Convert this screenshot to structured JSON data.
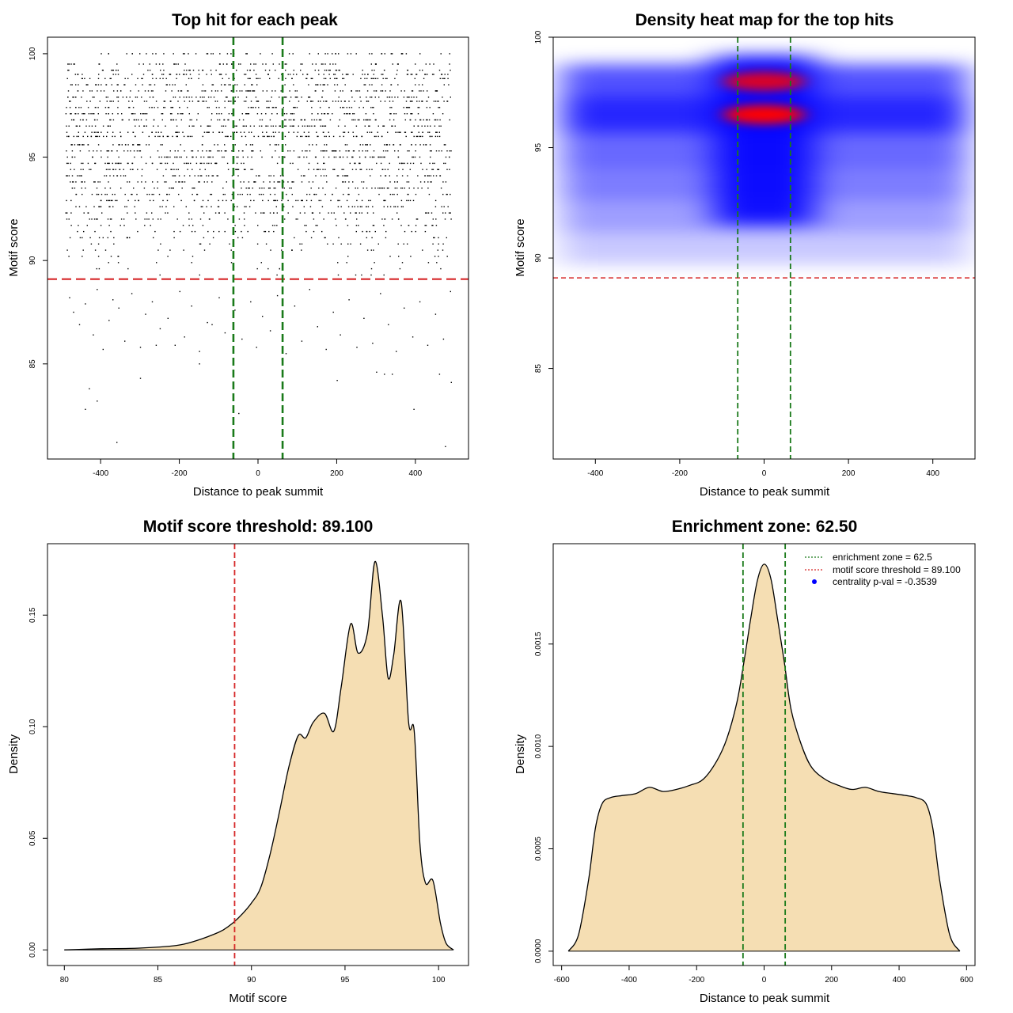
{
  "chart_data": [
    {
      "type": "scatter",
      "title": "Top hit for each peak",
      "xlabel": "Distance to peak summit",
      "ylabel": "Motif score",
      "xlim": [
        -535,
        535
      ],
      "ylim": [
        80.4,
        100.8
      ],
      "xticks": [
        -400,
        -200,
        0,
        200,
        400
      ],
      "yticks": [
        85,
        90,
        95,
        100
      ],
      "hline": {
        "y": 89.1,
        "color": "#d62728"
      },
      "vlines": {
        "x": [
          -62.5,
          62.5
        ],
        "color": "#1a7a1a"
      },
      "point_generation": {
        "x_range": [
          -490,
          490
        ],
        "score_levels": [
          100.0,
          99.5,
          99.2,
          99.0,
          98.8,
          98.5,
          98.2,
          97.9,
          97.7,
          97.4,
          97.1,
          96.8,
          96.5,
          96.2,
          96.0,
          95.6,
          95.3,
          95.0,
          94.7,
          94.4,
          94.1,
          93.8,
          93.5,
          93.2,
          92.9,
          92.6,
          92.3,
          92.0,
          91.7,
          91.4,
          91.1,
          90.8,
          90.5,
          90.2,
          89.9,
          89.6,
          89.3
        ],
        "dense_count_per_level": [
          55,
          60,
          60,
          80,
          70,
          70,
          90,
          85,
          90,
          85,
          95,
          95,
          100,
          90,
          95,
          85,
          95,
          90,
          85,
          80,
          80,
          75,
          70,
          70,
          65,
          60,
          55,
          50,
          40,
          35,
          30,
          25,
          20,
          15,
          12,
          10,
          8
        ],
        "sparse_points": [
          [
            -480,
            88.2
          ],
          [
            -470,
            87.5
          ],
          [
            -455,
            86.9
          ],
          [
            -440,
            87.9
          ],
          [
            -420,
            86.4
          ],
          [
            -410,
            88.6
          ],
          [
            -395,
            85.7
          ],
          [
            -380,
            87.1
          ],
          [
            -370,
            88.1
          ],
          [
            -355,
            87.7
          ],
          [
            -340,
            86.1
          ],
          [
            -322,
            88.4
          ],
          [
            -300,
            85.8
          ],
          [
            -287,
            87.4
          ],
          [
            -270,
            88.0
          ],
          [
            -250,
            86.7
          ],
          [
            -230,
            87.2
          ],
          [
            -212,
            85.9
          ],
          [
            -200,
            88.5
          ],
          [
            -188,
            86.3
          ],
          [
            -170,
            87.8
          ],
          [
            -150,
            85.6
          ],
          [
            -130,
            87.0
          ],
          [
            -118,
            86.9
          ],
          [
            -100,
            88.2
          ],
          [
            -85,
            86.5
          ],
          [
            -60,
            87.6
          ],
          [
            -42,
            86.2
          ],
          [
            -20,
            88.0
          ],
          [
            -5,
            85.8
          ],
          [
            10,
            87.3
          ],
          [
            30,
            86.6
          ],
          [
            48,
            88.3
          ],
          [
            70,
            85.5
          ],
          [
            92,
            87.8
          ],
          [
            110,
            86.1
          ],
          [
            130,
            88.6
          ],
          [
            150,
            86.8
          ],
          [
            172,
            85.7
          ],
          [
            190,
            87.5
          ],
          [
            208,
            86.4
          ],
          [
            230,
            88.1
          ],
          [
            250,
            85.8
          ],
          [
            268,
            87.2
          ],
          [
            290,
            86.0
          ],
          [
            310,
            88.4
          ],
          [
            330,
            86.9
          ],
          [
            350,
            85.6
          ],
          [
            370,
            87.7
          ],
          [
            392,
            86.3
          ],
          [
            410,
            88.0
          ],
          [
            430,
            85.9
          ],
          [
            450,
            87.4
          ],
          [
            470,
            86.2
          ],
          [
            488,
            88.5
          ],
          [
            -430,
            83.8
          ],
          [
            -410,
            83.2
          ],
          [
            -440,
            82.8
          ],
          [
            -360,
            81.2
          ],
          [
            -300,
            84.3
          ],
          [
            -150,
            85.0
          ],
          [
            -50,
            82.6
          ],
          [
            200,
            84.2
          ],
          [
            300,
            84.6
          ],
          [
            320,
            84.5
          ],
          [
            340,
            84.5
          ],
          [
            395,
            82.8
          ],
          [
            460,
            84.5
          ],
          [
            475,
            81.0
          ],
          [
            490,
            84.1
          ],
          [
            -260,
            85.9
          ],
          [
            60,
            85.2
          ]
        ]
      },
      "marker_color": "#000000"
    },
    {
      "type": "heatmap",
      "title": "Density heat map for the top hits",
      "xlabel": "Distance to peak summit",
      "ylabel": "Motif score",
      "xlim": [
        -500,
        500
      ],
      "ylim": [
        80.9,
        100.0
      ],
      "xticks": [
        -400,
        -200,
        0,
        200,
        400
      ],
      "yticks": [
        85,
        90,
        95,
        100
      ],
      "hline": {
        "y": 89.1,
        "color": "#d62728"
      },
      "vlines": {
        "x": [
          -62.5,
          62.5
        ],
        "color": "#1a7a1a"
      },
      "colors": {
        "low": "#ffffff",
        "mid": "#0000ff",
        "high": "#ff0000"
      },
      "density_bands": [
        {
          "y": 98.0,
          "weight": 0.8
        },
        {
          "y": 96.5,
          "weight": 1.0
        },
        {
          "y": 95.0,
          "weight": 0.7
        },
        {
          "y": 93.5,
          "weight": 0.6
        },
        {
          "y": 92.0,
          "weight": 0.45
        },
        {
          "y": 90.5,
          "weight": 0.25
        }
      ],
      "hotspots": [
        {
          "x": 0,
          "y": 96.5,
          "weight": 1.0
        },
        {
          "x": 0,
          "y": 98.0,
          "weight": 0.85
        }
      ]
    },
    {
      "type": "area",
      "title": "Motif score threshold: 89.100",
      "xlabel": "Motif score",
      "ylabel": "Density",
      "xlim": [
        79.1,
        101.6
      ],
      "ylim": [
        -0.007,
        0.182
      ],
      "xticks": [
        80,
        85,
        90,
        95,
        100
      ],
      "yticks": [
        0.0,
        0.05,
        0.1,
        0.15
      ],
      "ytick_labels": [
        "0.00",
        "0.05",
        "0.10",
        "0.15"
      ],
      "vline": {
        "x": 89.1,
        "color": "#d62728"
      },
      "fill": "#f5deb3",
      "x": [
        80.0,
        82.0,
        84.0,
        86.0,
        87.0,
        88.0,
        88.5,
        89.0,
        89.5,
        90.0,
        90.5,
        91.0,
        91.5,
        92.0,
        92.5,
        92.9,
        93.3,
        93.9,
        94.4,
        94.8,
        95.3,
        95.7,
        96.2,
        96.6,
        97.0,
        97.3,
        97.6,
        98.0,
        98.4,
        98.7,
        99.0,
        99.3,
        99.7,
        100.1,
        100.4,
        100.8
      ],
      "y": [
        0.0,
        0.0005,
        0.0008,
        0.002,
        0.004,
        0.007,
        0.009,
        0.012,
        0.016,
        0.021,
        0.028,
        0.043,
        0.062,
        0.082,
        0.096,
        0.095,
        0.102,
        0.106,
        0.098,
        0.118,
        0.146,
        0.133,
        0.142,
        0.174,
        0.15,
        0.122,
        0.132,
        0.156,
        0.102,
        0.098,
        0.048,
        0.03,
        0.031,
        0.012,
        0.003,
        0.0
      ]
    },
    {
      "type": "area",
      "title": "Enrichment zone: 62.50",
      "xlabel": "Distance to peak summit",
      "ylabel": "Density",
      "xlim": [
        -625,
        625
      ],
      "ylim": [
        -7e-05,
        0.00199
      ],
      "xticks": [
        -600,
        -400,
        -200,
        0,
        200,
        400,
        600
      ],
      "yticks": [
        0.0,
        0.0005,
        0.001,
        0.0015
      ],
      "ytick_labels": [
        "0.0000",
        "0.0005",
        "0.0010",
        "0.0015"
      ],
      "vlines": {
        "x": [
          -62.5,
          62.5
        ],
        "color": "#1a7a1a"
      },
      "fill": "#f5deb3",
      "x": [
        -580,
        -550,
        -520,
        -500,
        -480,
        -455,
        -420,
        -380,
        -340,
        -300,
        -260,
        -220,
        -180,
        -140,
        -110,
        -80,
        -60,
        -40,
        -20,
        0,
        20,
        40,
        60,
        80,
        110,
        140,
        180,
        220,
        260,
        300,
        340,
        380,
        420,
        450,
        480,
        500,
        520,
        550,
        580
      ],
      "y": [
        0.0,
        8e-05,
        0.00035,
        0.0006,
        0.00072,
        0.00075,
        0.00076,
        0.00077,
        0.0008,
        0.00078,
        0.00079,
        0.00081,
        0.00084,
        0.00093,
        0.00104,
        0.00122,
        0.00141,
        0.00162,
        0.00181,
        0.00189,
        0.00182,
        0.00162,
        0.00141,
        0.00118,
        0.00101,
        0.0009,
        0.00084,
        0.00081,
        0.00079,
        0.0008,
        0.00078,
        0.00077,
        0.00076,
        0.00075,
        0.00072,
        0.0006,
        0.00035,
        8e-05,
        0.0
      ],
      "legend": {
        "position": "top-right",
        "entries": [
          {
            "label": "enrichment zone = 62.5",
            "color": "#1a7a1a",
            "style": "dotted-line"
          },
          {
            "label": "motif score threshold = 89.100",
            "color": "#d62728",
            "style": "dotted-line"
          },
          {
            "label": "centrality p-val = -0.3539",
            "color": "#0000ff",
            "style": "point"
          }
        ]
      }
    }
  ]
}
